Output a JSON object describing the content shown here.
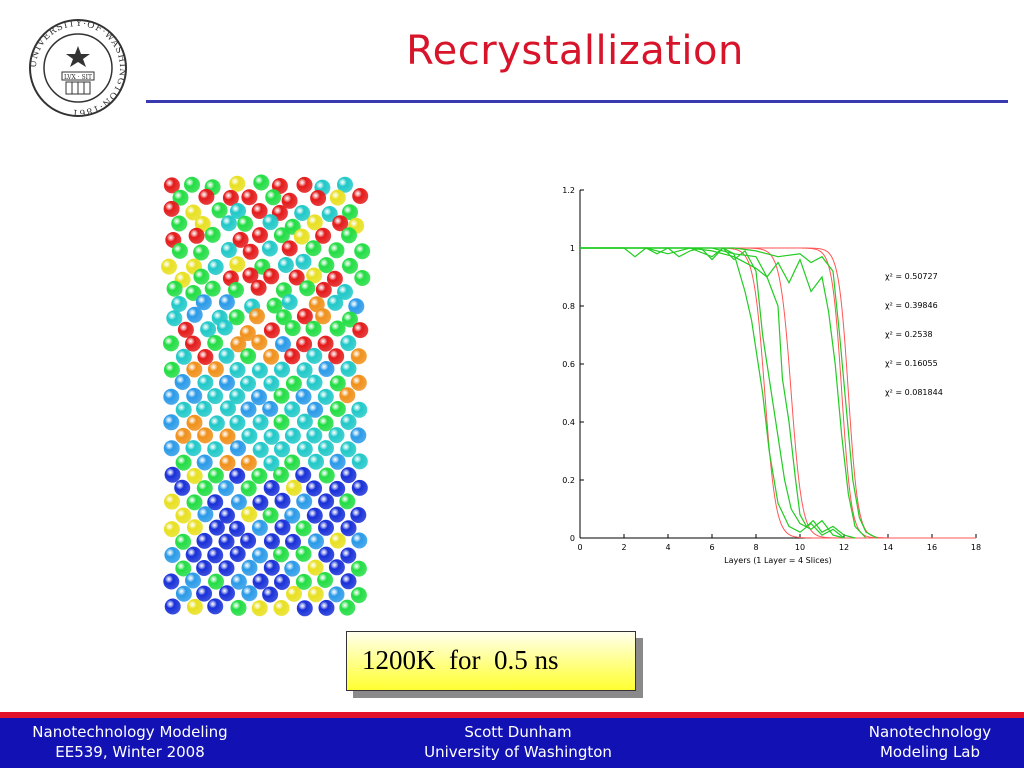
{
  "slide": {
    "title": "Recrystallization",
    "caption": "1200K  for  0.5 ns",
    "seal_text": "UNIVERSITY·OF·WASHINGTON·1861",
    "seal_motto": "LVX · SIT"
  },
  "footer": {
    "left_line1": "Nanotechnology Modeling",
    "left_line2": "EE539, Winter 2008",
    "center_line1": "Scott Dunham",
    "center_line2": "University of Washington",
    "right_line1": "Nanotechnology",
    "right_line2": "Modeling Lab"
  },
  "colors": {
    "title": "#d7142a",
    "rule": "#3a3ab0",
    "footer_bg": "#1212b4",
    "footer_stripe": "#e3122b",
    "sim_line": "#22cc22",
    "fit_line": "#ff5555"
  },
  "chart_data": {
    "type": "line",
    "xlabel": "Layers (1 Layer = 4 Slices)",
    "ylabel": "",
    "xlim": [
      0,
      18
    ],
    "ylim": [
      0,
      1.2
    ],
    "xticks": [
      0,
      2,
      4,
      6,
      8,
      10,
      12,
      14,
      16,
      18
    ],
    "yticks": [
      0,
      0.2,
      0.4,
      0.6,
      0.8,
      1,
      1.2
    ],
    "annotations": [
      "χ² = 0.50727",
      "χ² = 0.39846",
      "χ² = 0.2538",
      "χ² = 0.16055",
      "χ² = 0.081844"
    ],
    "series": [
      {
        "kind": "data",
        "x": [
          0,
          2,
          2.5,
          3,
          3.5,
          4,
          4.5,
          5,
          5.5,
          6,
          6.5,
          7,
          7.5,
          7.8,
          8,
          8.3,
          8.6,
          9,
          9.5,
          10,
          10.5,
          11,
          11.5,
          12
        ],
        "y": [
          1,
          1,
          0.97,
          1,
          0.98,
          1,
          0.97,
          0.99,
          1,
          0.96,
          1,
          0.98,
          0.85,
          0.75,
          0.65,
          0.5,
          0.3,
          0.12,
          0.04,
          0.02,
          0.05,
          0.01,
          0.03,
          0
        ]
      },
      {
        "kind": "data",
        "x": [
          0,
          2,
          3,
          4,
          5,
          6,
          6.5,
          7,
          7.5,
          8,
          8.3,
          8.6,
          9,
          9.3,
          9.6,
          10,
          10.5,
          11,
          11.5,
          12
        ],
        "y": [
          1,
          1,
          1,
          0.98,
          1,
          0.97,
          1,
          0.96,
          0.99,
          0.92,
          0.7,
          0.55,
          0.35,
          0.2,
          0.1,
          0.05,
          0.03,
          0.06,
          0.01,
          0
        ]
      },
      {
        "kind": "data",
        "x": [
          0,
          5,
          6,
          7,
          8,
          8.5,
          9,
          9.2,
          9.5,
          9.8,
          10,
          10.3,
          10.6,
          11,
          11.5,
          12,
          12.5
        ],
        "y": [
          1,
          1,
          0.99,
          0.97,
          0.93,
          0.9,
          0.8,
          0.55,
          0.4,
          0.2,
          0.08,
          0.04,
          0.06,
          0.02,
          0.04,
          0.01,
          0
        ]
      },
      {
        "kind": "data",
        "x": [
          0,
          6,
          7,
          8,
          8.5,
          9,
          9.5,
          10,
          10.5,
          11,
          11.3,
          11.6,
          11.9,
          12.2,
          12.5,
          13
        ],
        "y": [
          1,
          1,
          0.98,
          0.97,
          0.9,
          0.95,
          0.88,
          0.96,
          0.85,
          0.9,
          0.78,
          0.6,
          0.35,
          0.15,
          0.04,
          0
        ]
      },
      {
        "kind": "data",
        "x": [
          0,
          7,
          8,
          9,
          10,
          10.5,
          11,
          11.5,
          11.8,
          12.1,
          12.4,
          12.7,
          13,
          13.5
        ],
        "y": [
          1,
          1,
          0.99,
          0.97,
          0.98,
          0.95,
          0.97,
          0.92,
          0.7,
          0.45,
          0.2,
          0.07,
          0.02,
          0
        ]
      },
      {
        "kind": "fit",
        "center": 8.4,
        "width": 0.25
      },
      {
        "kind": "fit",
        "center": 9.6,
        "width": 0.25
      },
      {
        "kind": "fit",
        "center": 11.9,
        "width": 0.22
      },
      {
        "kind": "fit",
        "center": 12.2,
        "width": 0.22
      }
    ]
  }
}
